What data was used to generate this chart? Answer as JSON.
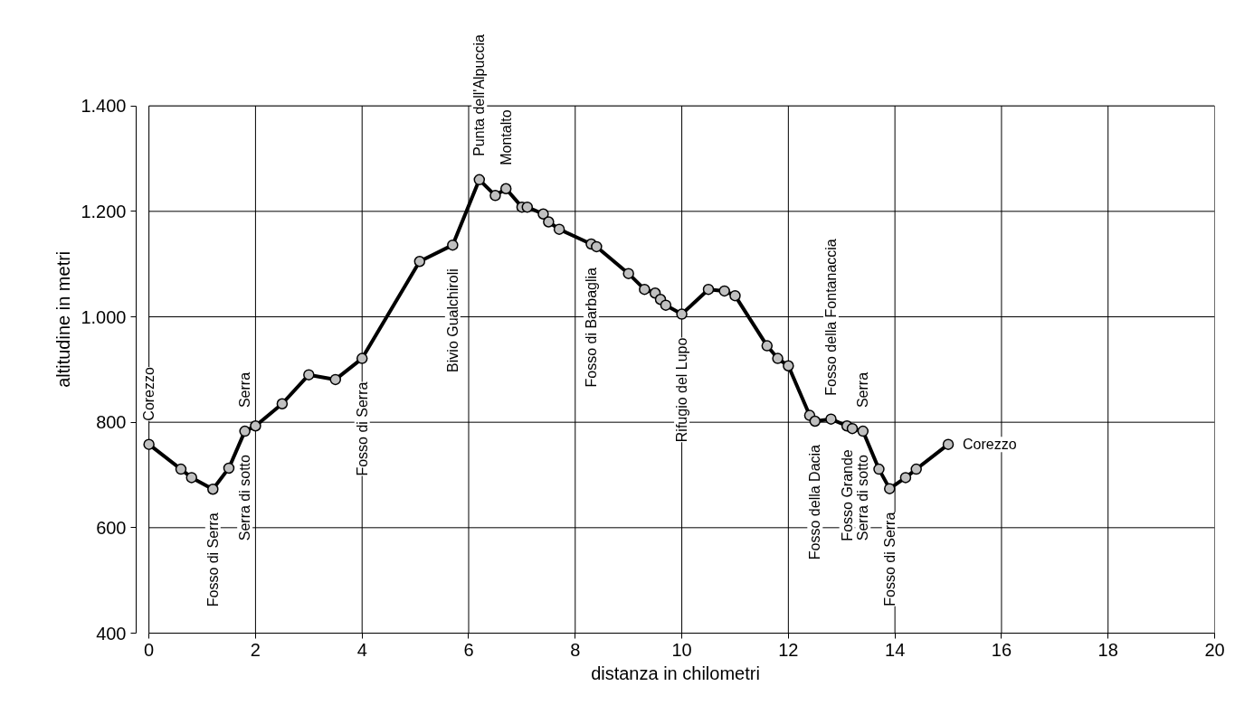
{
  "chart_data": {
    "type": "line",
    "xlabel": "distanza in chilometri",
    "ylabel": "altitudine  in metri",
    "x": [
      0,
      0.6,
      0.8,
      1.2,
      1.5,
      1.8,
      2.0,
      2.5,
      3.0,
      3.5,
      4.0,
      5.08,
      5.7,
      6.2,
      6.5,
      6.7,
      7.0,
      7.1,
      7.4,
      7.5,
      7.7,
      8.3,
      8.4,
      9.0,
      9.3,
      9.5,
      9.6,
      9.7,
      10.0,
      10.5,
      10.8,
      11.0,
      11.6,
      11.8,
      12.0,
      12.4,
      12.5,
      12.8,
      13.1,
      13.2,
      13.4,
      13.7,
      13.9,
      14.2,
      14.4,
      15.0
    ],
    "series": [
      {
        "color": "#000000",
        "values": [
          758,
          711,
          695,
          673,
          713,
          783,
          793,
          835,
          890,
          881,
          921,
          1105,
          1136,
          1260,
          1230,
          1243,
          1208,
          1208,
          1195,
          1180,
          1166,
          1138,
          1133,
          1082,
          1052,
          1045,
          1033,
          1022,
          1005,
          1052,
          1049,
          1040,
          945,
          921,
          907,
          813,
          802,
          806,
          793,
          788,
          783,
          711,
          674,
          695,
          711,
          758
        ]
      }
    ],
    "marker": "circle",
    "line_style": "solid",
    "grid": true,
    "xlim": [
      0,
      20
    ],
    "xticks": [
      0,
      2,
      4,
      6,
      8,
      10,
      12,
      14,
      16,
      18,
      20
    ],
    "ylim": [
      400,
      1400
    ],
    "yticks": [
      {
        "value": 400,
        "label": "400"
      },
      {
        "value": 600,
        "label": "600"
      },
      {
        "value": 800,
        "label": "800"
      },
      {
        "value": 1000,
        "label": "1.000"
      },
      {
        "value": 1200,
        "label": "1.200"
      },
      {
        "value": 1400,
        "label": "1.400"
      }
    ],
    "annotations": [
      {
        "text": "Corezzo",
        "x": 0,
        "y": 758
      },
      {
        "text": "Fosso di Serra",
        "x": 1.2,
        "y": 673
      },
      {
        "text": "Serra di sotto",
        "x": 1.8,
        "y": 783
      },
      {
        "text": "Serra",
        "x": 1.8,
        "y": 783
      },
      {
        "text": "Fosso di Serra",
        "x": 4.0,
        "y": 921
      },
      {
        "text": "Bivio Gualchiroli",
        "x": 5.7,
        "y": 1136
      },
      {
        "text": "Punta dell'Alpuccia",
        "x": 6.2,
        "y": 1260
      },
      {
        "text": "Montalto",
        "x": 6.7,
        "y": 1243
      },
      {
        "text": "Fosso di Barbaglia",
        "x": 8.3,
        "y": 1138
      },
      {
        "text": "Rifugio del Lupo",
        "x": 10.0,
        "y": 1005
      },
      {
        "text": "Fosso della Dacia",
        "x": 12.5,
        "y": 802
      },
      {
        "text": "Fosso della Fontanaccia",
        "x": 12.8,
        "y": 806
      },
      {
        "text": "Fosso Grande",
        "x": 13.1,
        "y": 793
      },
      {
        "text": "Serra di sotto",
        "x": 13.4,
        "y": 783
      },
      {
        "text": "Serra",
        "x": 13.4,
        "y": 783
      },
      {
        "text": "Fosso di Serra",
        "x": 13.9,
        "y": 674
      },
      {
        "text": "Corezzo",
        "x": 15.0,
        "y": 758
      }
    ]
  }
}
